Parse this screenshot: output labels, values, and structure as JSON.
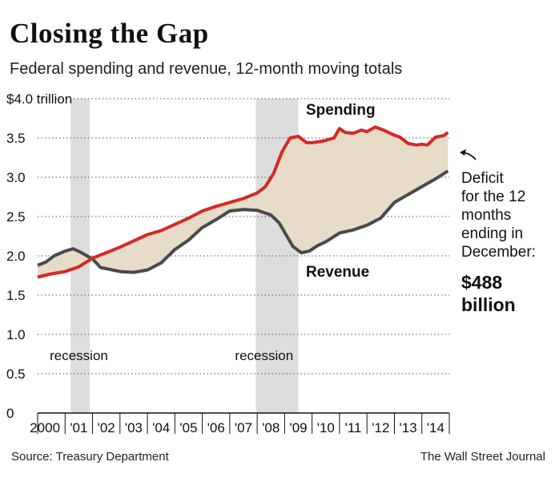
{
  "header": {
    "title": "Closing the Gap",
    "subtitle": "Federal spending and revenue, 12-month moving totals"
  },
  "footer": {
    "source": "Source: Treasury Department",
    "credit": "The Wall Street Journal"
  },
  "colors": {
    "spending": "#d42a26",
    "revenue": "#4a4a4a",
    "gap_fill": "#e6dcc8",
    "recession": "#dddddd"
  },
  "chart_data": {
    "type": "line",
    "title": "Closing the Gap",
    "subtitle": "Federal spending and revenue, 12-month moving totals",
    "xlabel": "",
    "ylabel": "",
    "xlim": [
      2000.0,
      2015.0
    ],
    "ylim": [
      0,
      4.0
    ],
    "grid": true,
    "y_ticks": [
      {
        "value": 4.0,
        "label": "$4.0 trillion"
      },
      {
        "value": 3.5,
        "label": "3.5"
      },
      {
        "value": 3.0,
        "label": "3.0"
      },
      {
        "value": 2.5,
        "label": "2.5"
      },
      {
        "value": 2.0,
        "label": "2.0"
      },
      {
        "value": 1.5,
        "label": "1.5"
      },
      {
        "value": 1.0,
        "label": "1.0"
      },
      {
        "value": 0.5,
        "label": "0.5"
      },
      {
        "value": 0,
        "label": "0"
      }
    ],
    "x_ticks": [
      {
        "value": 2000,
        "label": "2000"
      },
      {
        "value": 2001,
        "label": "'01"
      },
      {
        "value": 2002,
        "label": "'02"
      },
      {
        "value": 2003,
        "label": "'03"
      },
      {
        "value": 2004,
        "label": "'04"
      },
      {
        "value": 2005,
        "label": "'05"
      },
      {
        "value": 2006,
        "label": "'06"
      },
      {
        "value": 2007,
        "label": "'07"
      },
      {
        "value": 2008,
        "label": "'08"
      },
      {
        "value": 2009,
        "label": "'09"
      },
      {
        "value": 2010,
        "label": "'10"
      },
      {
        "value": 2011,
        "label": "'11"
      },
      {
        "value": 2012,
        "label": "'12"
      },
      {
        "value": 2013,
        "label": "'13"
      },
      {
        "value": 2014,
        "label": "'14"
      }
    ],
    "recessions": [
      {
        "start": 2001.2,
        "end": 2001.9,
        "label": "recession"
      },
      {
        "start": 2007.95,
        "end": 2009.5,
        "label": "recession"
      }
    ],
    "series": [
      {
        "name": "Spending",
        "x": [
          2000.0,
          2000.5,
          2001.0,
          2001.5,
          2002.0,
          2002.5,
          2003.0,
          2003.5,
          2004.0,
          2004.5,
          2005.0,
          2005.5,
          2006.0,
          2006.5,
          2007.0,
          2007.5,
          2008.0,
          2008.3,
          2008.6,
          2008.9,
          2009.2,
          2009.5,
          2009.8,
          2010.0,
          2010.4,
          2010.8,
          2011.0,
          2011.2,
          2011.5,
          2011.8,
          2012.0,
          2012.3,
          2012.6,
          2012.9,
          2013.2,
          2013.5,
          2013.8,
          2014.0,
          2014.2,
          2014.5,
          2014.8,
          2014.95
        ],
        "values": [
          1.73,
          1.77,
          1.8,
          1.86,
          1.97,
          2.04,
          2.11,
          2.19,
          2.27,
          2.32,
          2.4,
          2.48,
          2.57,
          2.63,
          2.68,
          2.73,
          2.8,
          2.88,
          3.05,
          3.32,
          3.5,
          3.52,
          3.44,
          3.44,
          3.46,
          3.5,
          3.62,
          3.57,
          3.56,
          3.6,
          3.58,
          3.64,
          3.6,
          3.55,
          3.51,
          3.43,
          3.41,
          3.42,
          3.41,
          3.51,
          3.53,
          3.57
        ]
      },
      {
        "name": "Revenue",
        "x": [
          2000.0,
          2000.3,
          2000.6,
          2001.0,
          2001.3,
          2001.6,
          2002.0,
          2002.3,
          2002.6,
          2003.0,
          2003.5,
          2004.0,
          2004.5,
          2005.0,
          2005.5,
          2006.0,
          2006.5,
          2007.0,
          2007.5,
          2008.0,
          2008.5,
          2008.8,
          2009.0,
          2009.3,
          2009.6,
          2009.9,
          2010.2,
          2010.5,
          2011.0,
          2011.5,
          2012.0,
          2012.5,
          2013.0,
          2013.3,
          2013.6,
          2014.0,
          2014.5,
          2014.95
        ],
        "values": [
          1.88,
          1.92,
          2.0,
          2.06,
          2.09,
          2.04,
          1.96,
          1.85,
          1.83,
          1.8,
          1.79,
          1.82,
          1.91,
          2.08,
          2.2,
          2.36,
          2.46,
          2.57,
          2.59,
          2.58,
          2.52,
          2.42,
          2.3,
          2.12,
          2.04,
          2.06,
          2.13,
          2.18,
          2.29,
          2.33,
          2.39,
          2.48,
          2.68,
          2.74,
          2.8,
          2.88,
          2.98,
          3.08
        ]
      }
    ],
    "annotations": [
      {
        "id": "spending",
        "text": "Spending"
      },
      {
        "id": "revenue",
        "text": "Revenue"
      },
      {
        "id": "deficit",
        "lines": [
          "Deficit",
          "for the 12",
          "months",
          "ending in",
          "December:"
        ],
        "value_lines": [
          "$488",
          "billion"
        ]
      }
    ]
  }
}
